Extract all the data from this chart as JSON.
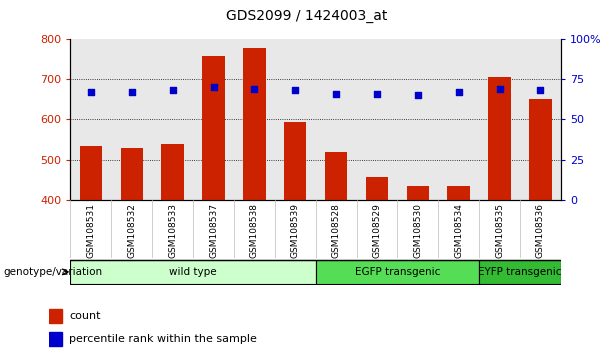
{
  "title": "GDS2099 / 1424003_at",
  "samples": [
    "GSM108531",
    "GSM108532",
    "GSM108533",
    "GSM108537",
    "GSM108538",
    "GSM108539",
    "GSM108528",
    "GSM108529",
    "GSM108530",
    "GSM108534",
    "GSM108535",
    "GSM108536"
  ],
  "counts": [
    535,
    528,
    538,
    758,
    778,
    594,
    520,
    457,
    435,
    435,
    706,
    652
  ],
  "percentiles": [
    67,
    67,
    68,
    70,
    69,
    68,
    66,
    66,
    65,
    67,
    69,
    68
  ],
  "groups": [
    {
      "label": "wild type",
      "start": 0,
      "end": 6,
      "color": "#ccffcc"
    },
    {
      "label": "EGFP transgenic",
      "start": 6,
      "end": 10,
      "color": "#55dd55"
    },
    {
      "label": "EYFP transgenic",
      "start": 10,
      "end": 12,
      "color": "#33bb33"
    }
  ],
  "bar_color": "#cc2200",
  "dot_color": "#0000cc",
  "bar_bottom": 400,
  "ylim_left": [
    400,
    800
  ],
  "ylim_right": [
    0,
    100
  ],
  "yticks_left": [
    400,
    500,
    600,
    700,
    800
  ],
  "yticks_right": [
    0,
    25,
    50,
    75,
    100
  ],
  "ytick_labels_right": [
    "0",
    "25",
    "50",
    "75",
    "100%"
  ],
  "grid_values": [
    500,
    600,
    700
  ],
  "background_color": "#ffffff",
  "plot_bg_color": "#e8e8e8",
  "genotype_label": "genotype/variation",
  "legend_count": "count",
  "legend_percentile": "percentile rank within the sample"
}
